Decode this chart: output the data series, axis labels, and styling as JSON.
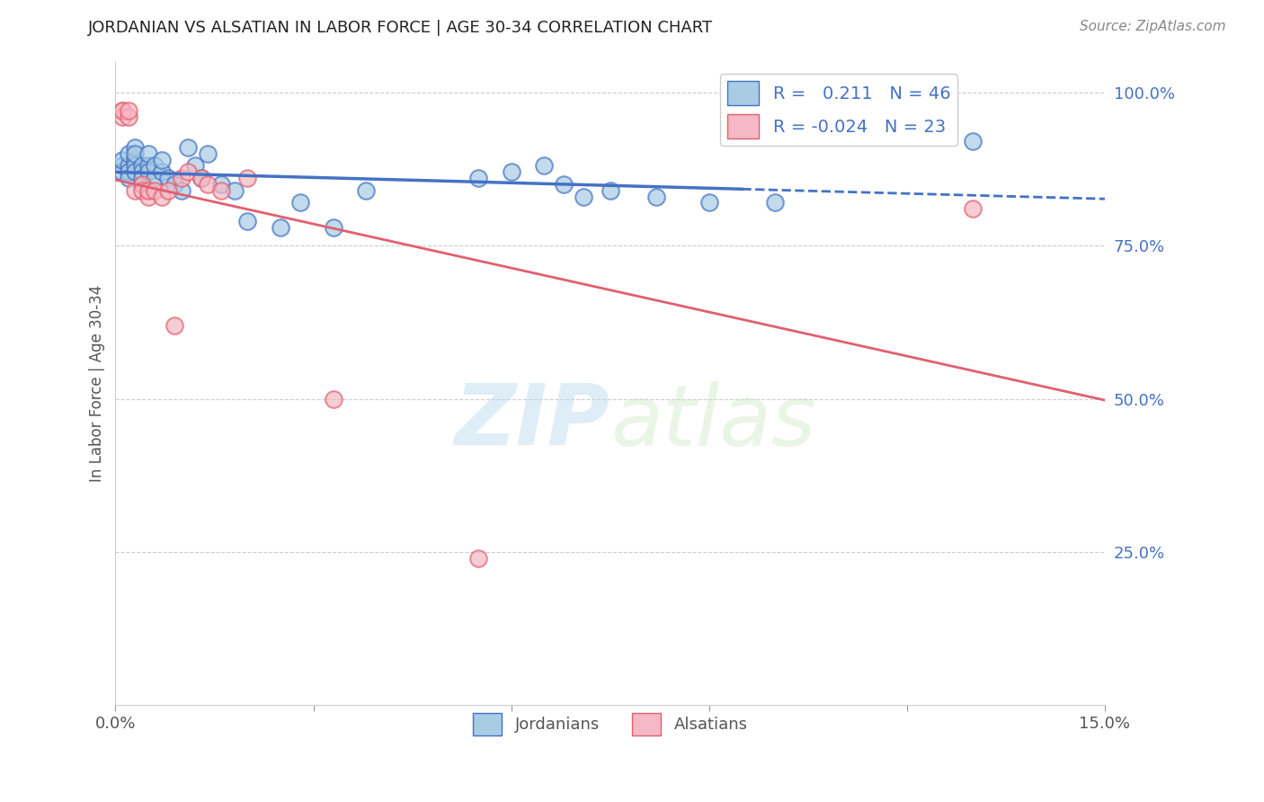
{
  "title": "JORDANIAN VS ALSATIAN IN LABOR FORCE | AGE 30-34 CORRELATION CHART",
  "source": "Source: ZipAtlas.com",
  "ylabel": "In Labor Force | Age 30-34",
  "xmin": 0.0,
  "xmax": 0.15,
  "ymin": 0.0,
  "ymax": 1.05,
  "r_blue": 0.211,
  "n_blue": 46,
  "r_pink": -0.024,
  "n_pink": 23,
  "blue_color": "#a8cce4",
  "pink_color": "#f5b8c4",
  "blue_line_color": "#4472c4",
  "pink_line_color": "#e06070",
  "watermark_zip": "ZIP",
  "watermark_atlas": "atlas",
  "jordanians_x": [
    0.001,
    0.001,
    0.001,
    0.002,
    0.002,
    0.002,
    0.002,
    0.003,
    0.003,
    0.003,
    0.003,
    0.003,
    0.004,
    0.004,
    0.004,
    0.005,
    0.005,
    0.005,
    0.006,
    0.006,
    0.007,
    0.007,
    0.008,
    0.009,
    0.01,
    0.011,
    0.012,
    0.013,
    0.014,
    0.016,
    0.018,
    0.02,
    0.025,
    0.028,
    0.033,
    0.038,
    0.055,
    0.06,
    0.065,
    0.068,
    0.071,
    0.075,
    0.082,
    0.09,
    0.1,
    0.13
  ],
  "jordanians_y": [
    0.88,
    0.87,
    0.89,
    0.88,
    0.87,
    0.86,
    0.9,
    0.89,
    0.88,
    0.87,
    0.91,
    0.9,
    0.88,
    0.87,
    0.86,
    0.88,
    0.87,
    0.9,
    0.86,
    0.88,
    0.87,
    0.89,
    0.86,
    0.85,
    0.84,
    0.91,
    0.88,
    0.86,
    0.9,
    0.85,
    0.84,
    0.79,
    0.78,
    0.82,
    0.78,
    0.84,
    0.86,
    0.87,
    0.88,
    0.85,
    0.83,
    0.84,
    0.83,
    0.82,
    0.82,
    0.92
  ],
  "alsatians_x": [
    0.001,
    0.001,
    0.001,
    0.002,
    0.002,
    0.003,
    0.004,
    0.004,
    0.005,
    0.005,
    0.006,
    0.007,
    0.008,
    0.009,
    0.01,
    0.011,
    0.013,
    0.014,
    0.016,
    0.02,
    0.033,
    0.055,
    0.13
  ],
  "alsatians_y": [
    0.97,
    0.96,
    0.97,
    0.96,
    0.97,
    0.84,
    0.85,
    0.84,
    0.83,
    0.84,
    0.84,
    0.83,
    0.84,
    0.62,
    0.86,
    0.87,
    0.86,
    0.85,
    0.84,
    0.86,
    0.5,
    0.24,
    0.81
  ],
  "y_tick_vals_right": [
    0.25,
    0.5,
    0.75,
    1.0
  ],
  "y_tick_labels_right": [
    "25.0%",
    "50.0%",
    "75.0%",
    "100.0%"
  ]
}
